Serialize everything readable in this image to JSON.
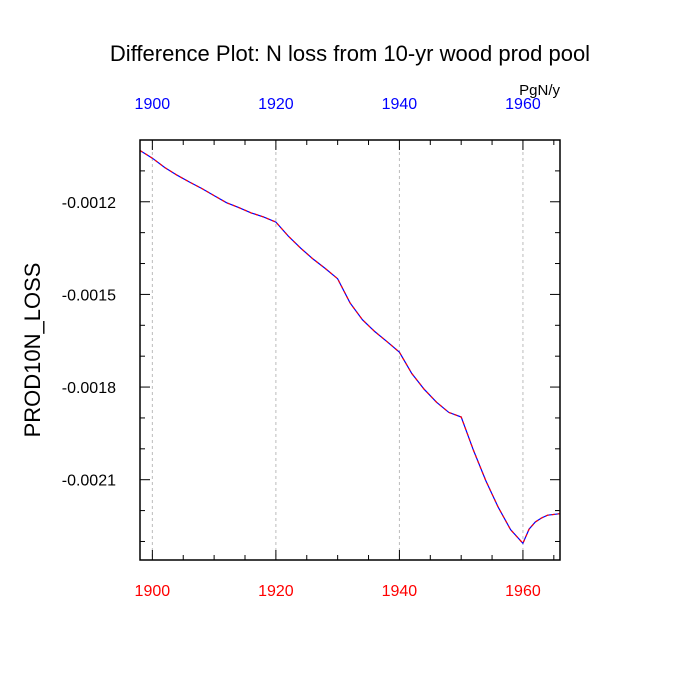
{
  "chart_data": {
    "type": "line",
    "title": "Difference Plot: N loss from 10-yr wood prod pool",
    "units": "PgN/y",
    "ylabel": "PROD10N_LOSS",
    "xlabel": "",
    "xlim": [
      1898,
      1966
    ],
    "ylim": [
      -0.00236,
      -0.001
    ],
    "x_ticks": [
      1900,
      1920,
      1940,
      1960
    ],
    "x_tick_labels": [
      "1900",
      "1920",
      "1940",
      "1960"
    ],
    "y_ticks": [
      -0.0012,
      -0.0015,
      -0.0018,
      -0.0021
    ],
    "y_tick_labels": [
      "-0.0012",
      "-0.0015",
      "-0.0018",
      "-0.0021"
    ],
    "vertical_grid": true,
    "grid_years": [
      1900,
      1920,
      1940,
      1960
    ],
    "colors": {
      "line_base": "#0000ff",
      "line_dash": "#ff0000",
      "top_ticks": "#0000ff",
      "bottom_ticks": "#ff0000",
      "grid": "#bbbbbb"
    },
    "series": [
      {
        "x": [
          1898,
          1900,
          1902,
          1904,
          1906,
          1908,
          1910,
          1912,
          1914,
          1916,
          1918,
          1920,
          1922,
          1924,
          1926,
          1928,
          1930,
          1932,
          1934,
          1936,
          1938,
          1940,
          1942,
          1944,
          1946,
          1948,
          1950,
          1952,
          1954,
          1956,
          1958,
          1960,
          1961,
          1962,
          1963,
          1964,
          1966
        ],
        "y": [
          -0.001034,
          -0.001059,
          -0.001089,
          -0.001114,
          -0.001136,
          -0.001157,
          -0.00118,
          -0.001203,
          -0.001219,
          -0.001236,
          -0.001249,
          -0.001266,
          -0.001311,
          -0.00135,
          -0.001385,
          -0.001416,
          -0.001449,
          -0.001527,
          -0.001582,
          -0.00162,
          -0.001653,
          -0.001687,
          -0.001756,
          -0.001807,
          -0.001849,
          -0.001882,
          -0.001897,
          -0.002005,
          -0.002104,
          -0.002189,
          -0.002262,
          -0.002306,
          -0.00226,
          -0.002237,
          -0.002224,
          -0.002215,
          -0.00221
        ]
      }
    ]
  }
}
